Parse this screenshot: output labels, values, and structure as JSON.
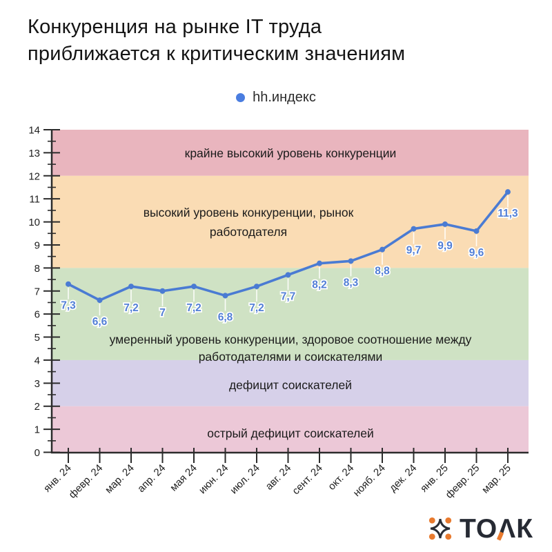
{
  "title": {
    "line1": "Конкуренция на рынке IT труда",
    "line2": "приближается к критическим значениям"
  },
  "legend": {
    "label": "hh.индекс",
    "dot_color": "#4a7de0"
  },
  "chart_data": {
    "type": "line",
    "title": "Конкуренция на рынке IT труда приближается к критическим значениям",
    "x": [
      "янв. 24",
      "февр. 24",
      "мар. 24",
      "апр. 24",
      "мая 24",
      "июн. 24",
      "июл. 24",
      "авг. 24",
      "сент. 24",
      "окт. 24",
      "нояб. 24",
      "дек. 24",
      "янв. 25",
      "февр. 25",
      "мар. 25"
    ],
    "series": [
      {
        "name": "hh.индекс",
        "color": "#4a7bd3",
        "label_color": "#527fd6",
        "values": [
          7.3,
          6.6,
          7.2,
          7,
          7.2,
          6.8,
          7.2,
          7.7,
          8.2,
          8.3,
          8.8,
          9.7,
          9.9,
          9.6,
          11.3
        ],
        "value_labels": [
          "7,3",
          "6,6",
          "7,2",
          "7",
          "7,2",
          "6,8",
          "7,2",
          "7,7",
          "8,2",
          "8,3",
          "8,8",
          "9,7",
          "9,9",
          "9,6",
          "11,3"
        ]
      }
    ],
    "ylim": [
      0,
      14
    ],
    "ytick_step": 1,
    "yminor_step": 0.5,
    "grid": false,
    "legend_position": "top",
    "bands": [
      {
        "from": 12,
        "to": 14,
        "color": "#e9b5be",
        "label_lines": [
          "крайне высокий уровень конкуренции"
        ]
      },
      {
        "from": 8,
        "to": 12,
        "color": "#fadcb4",
        "label_lines": [
          "высокий уровень конкуренции, рынок",
          "работодателя"
        ]
      },
      {
        "from": 4,
        "to": 8,
        "color": "#cfe2c4",
        "label_lines": [
          "умеренный уровень конкуренции, здоровое соотношение между",
          "работодателями и соискателями"
        ]
      },
      {
        "from": 2,
        "to": 4,
        "color": "#d6d0e9",
        "label_lines": [
          "дефицит соискателей"
        ]
      },
      {
        "from": 0,
        "to": 2,
        "color": "#ecc8d7",
        "label_lines": [
          "острый дефицит соискателей"
        ]
      }
    ]
  },
  "logo": {
    "part1": "ТО",
    "lambda": "Λ",
    "part2": "К",
    "text_color": "#262a33",
    "accent_color": "#e87a2e"
  }
}
